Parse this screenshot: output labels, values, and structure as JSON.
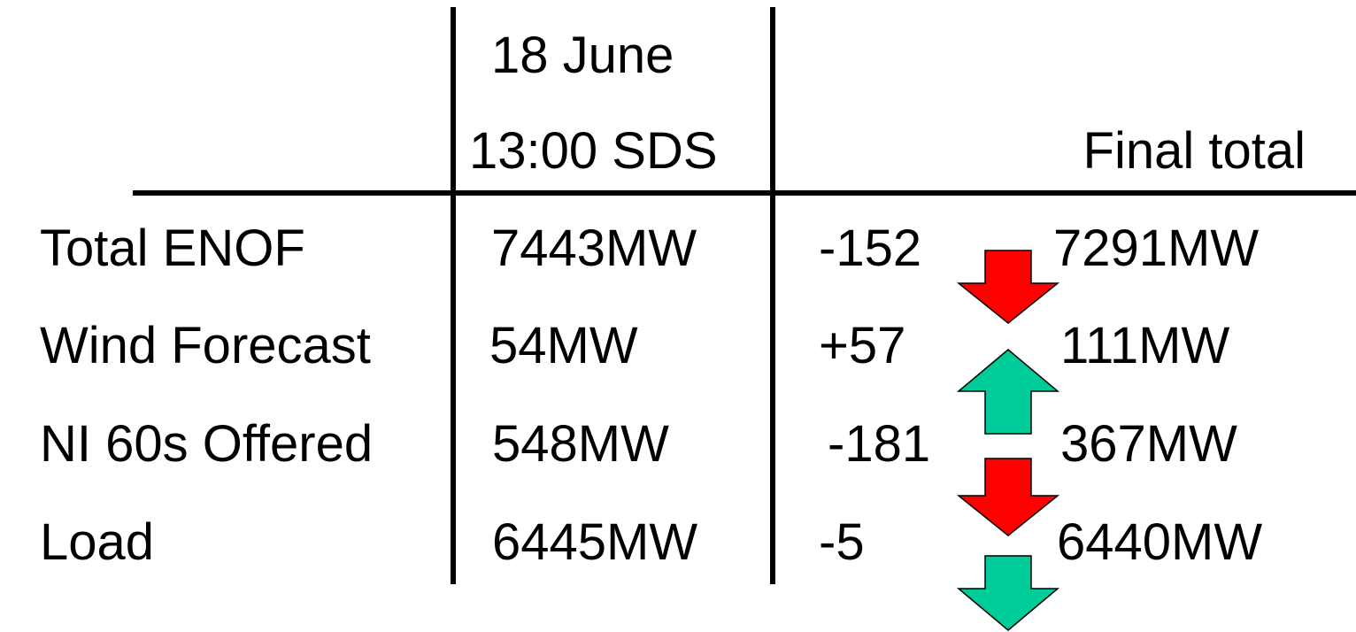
{
  "header": {
    "sds": [
      "18 June",
      "13:00 SDS"
    ],
    "final": "Final total"
  },
  "rows": [
    {
      "label": "Total ENOF",
      "sds": "7443MW",
      "change": "-152",
      "final": "7291MW"
    },
    {
      "label": "Wind Forecast",
      "sds": "54MW",
      "change": "+57",
      "final": "111MW"
    },
    {
      "label": "NI 60s Offered",
      "sds": "548MW",
      "change": "-181",
      "final": "367MW"
    },
    {
      "label": "Load",
      "sds": "6445MW",
      "change": "-5",
      "final": "6440MW"
    }
  ]
}
